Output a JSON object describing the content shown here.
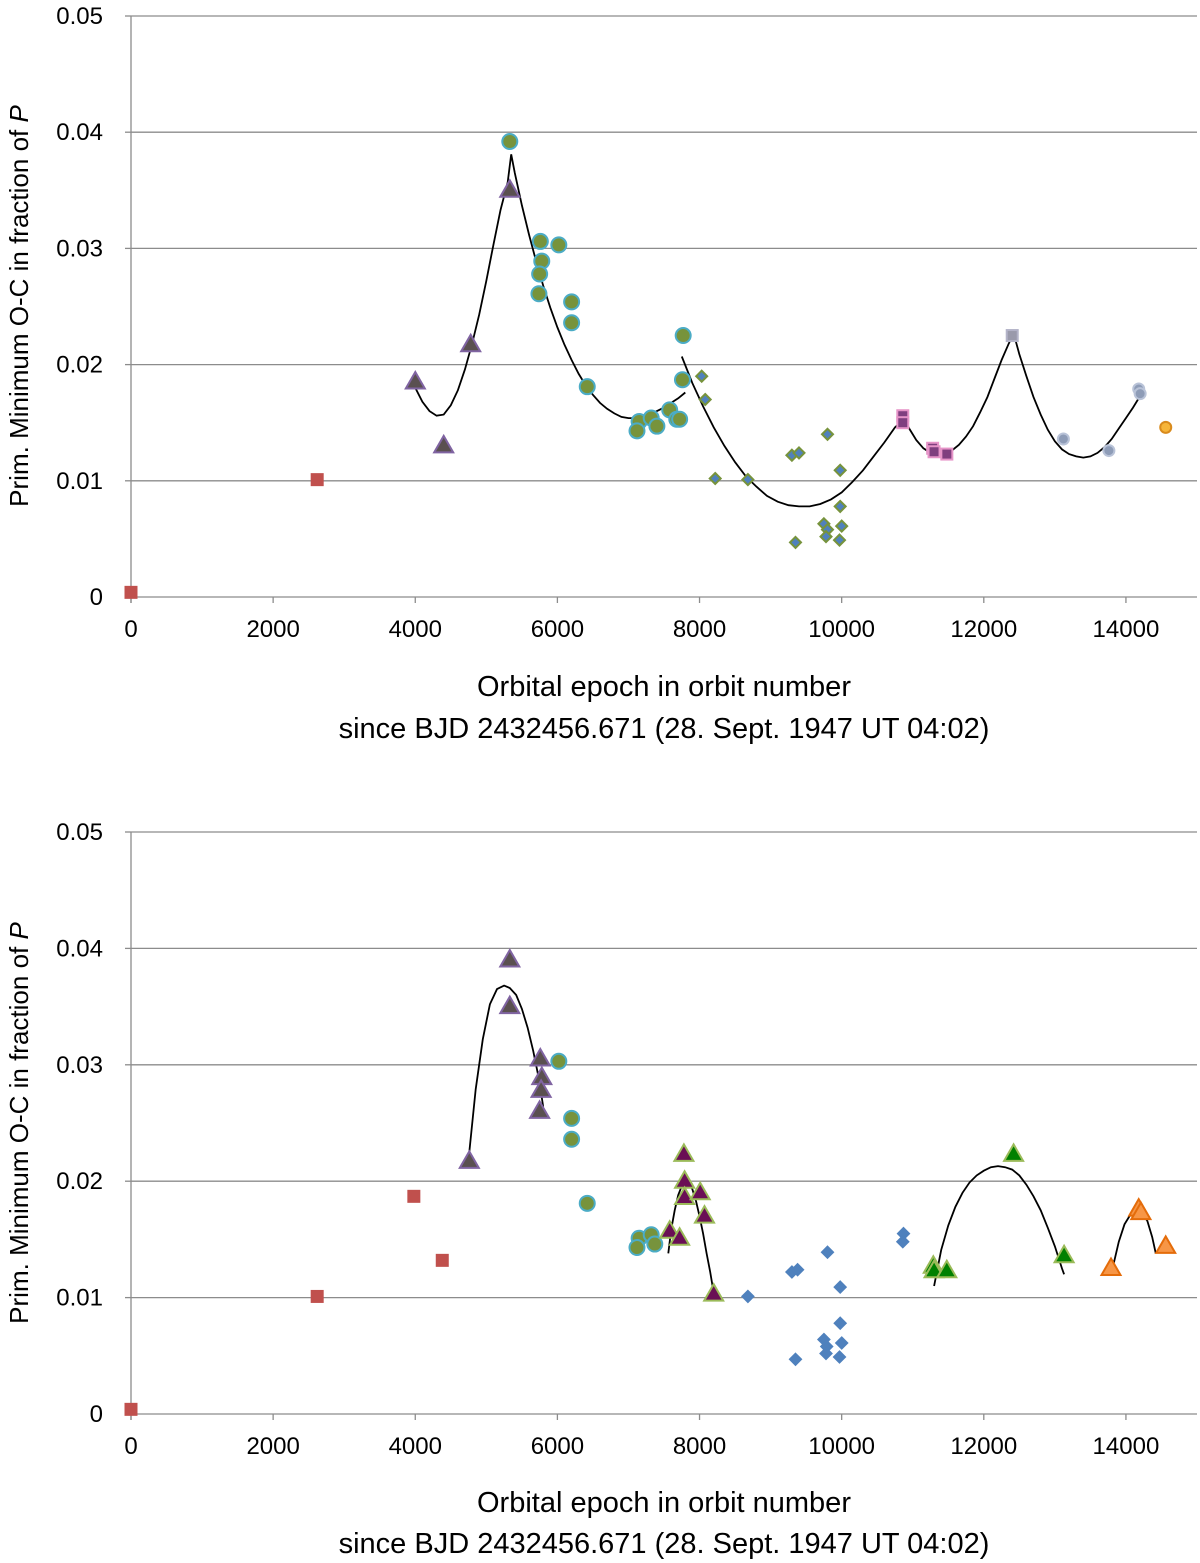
{
  "chart_data": [
    {
      "type": "scatter",
      "xlim": [
        0,
        15000
      ],
      "ylim": [
        0,
        0.05
      ],
      "xticks": [
        "0",
        "2000",
        "4000",
        "6000",
        "8000",
        "10000",
        "12000",
        "14000"
      ],
      "yticks": [
        "0",
        "0.01",
        "0.02",
        "0.03",
        "0.04",
        "0.05"
      ],
      "xlabel_line1": "Orbital epoch in orbit number",
      "xlabel_line2": "since BJD 2432456.671 (28. Sept. 1947 UT 04:02)",
      "ylabel_main": "Prim. Minimum O-C in fraction of ",
      "ylabel_symbol": "P",
      "grid": "horizontal",
      "series": [
        {
          "name": "red squares",
          "marker": "square",
          "color": "#c0504d",
          "edge": "#c0504d",
          "points": [
            [
              0,
              0.0004
            ],
            [
              2620,
              0.0101
            ]
          ]
        },
        {
          "name": "dark triangles",
          "marker": "triangle",
          "color": "#5a5050",
          "edge": "#8064a2",
          "points": [
            [
              4000,
              0.0185
            ],
            [
              4400,
              0.013
            ],
            [
              4780,
              0.0217
            ],
            [
              5330,
              0.035
            ]
          ]
        },
        {
          "name": "green circles",
          "marker": "circle",
          "color": "#77933c",
          "edge": "#4bacc6",
          "points": [
            [
              5330,
              0.0392
            ],
            [
              5760,
              0.0306
            ],
            [
              6020,
              0.0303
            ],
            [
              5780,
              0.0289
            ],
            [
              5750,
              0.0278
            ],
            [
              5740,
              0.0261
            ],
            [
              6200,
              0.0254
            ],
            [
              6200,
              0.0236
            ],
            [
              6420,
              0.0181
            ],
            [
              7150,
              0.0151
            ],
            [
              7320,
              0.0154
            ],
            [
              7400,
              0.0147
            ],
            [
              7120,
              0.0143
            ],
            [
              7580,
              0.0161
            ],
            [
              7680,
              0.0153
            ],
            [
              7720,
              0.0153
            ],
            [
              7770,
              0.0225
            ],
            [
              7760,
              0.0187
            ]
          ]
        },
        {
          "name": "small diamonds",
          "marker": "diamond",
          "color": "#4f81bd",
          "edge": "#77933c",
          "points": [
            [
              8030,
              0.019
            ],
            [
              8080,
              0.017
            ],
            [
              8220,
              0.0102
            ],
            [
              8680,
              0.0101
            ],
            [
              9300,
              0.0122
            ],
            [
              9400,
              0.0124
            ],
            [
              9350,
              0.0047
            ],
            [
              9800,
              0.014
            ],
            [
              9750,
              0.0063
            ],
            [
              9800,
              0.0058
            ],
            [
              9780,
              0.0052
            ],
            [
              9980,
              0.0109
            ],
            [
              9980,
              0.0078
            ],
            [
              10000,
              0.0061
            ],
            [
              9970,
              0.0049
            ]
          ]
        },
        {
          "name": "pink squares",
          "marker": "square",
          "color": "#7f3f7f",
          "edge": "#e694c8",
          "points": [
            [
              10860,
              0.0156
            ],
            [
              10860,
              0.015
            ],
            [
              11280,
              0.0128
            ],
            [
              11300,
              0.0125
            ],
            [
              11480,
              0.0123
            ]
          ]
        },
        {
          "name": "grey square",
          "marker": "square",
          "color": "#9a9aab",
          "edge": "#b3b3c8",
          "points": [
            [
              12400,
              0.0225
            ]
          ]
        },
        {
          "name": "grey circles",
          "marker": "circle-small",
          "color": "#8e9cb7",
          "edge": "#b9c3d8",
          "points": [
            [
              13120,
              0.0136
            ],
            [
              13760,
              0.0126
            ],
            [
              14180,
              0.0179
            ],
            [
              14200,
              0.0175
            ]
          ]
        },
        {
          "name": "orange circle",
          "marker": "circle-small",
          "color": "#f6b53a",
          "edge": "#d98b1d",
          "points": [
            [
              14560,
              0.0146
            ]
          ]
        }
      ],
      "fit_curves": [
        {
          "name": "fit 1",
          "x": [
            4000,
            4100,
            4200,
            4300,
            4400,
            4500,
            4600,
            4700,
            4800,
            4900,
            5000,
            5100,
            5200,
            5300,
            5350,
            5400,
            5500,
            5600,
            5700,
            5800,
            5900,
            6000,
            6100,
            6200,
            6300,
            6400,
            6500,
            6600,
            6700,
            6800,
            6900,
            7000,
            7100,
            7200,
            7300,
            7400,
            7500,
            7600,
            7700,
            7800
          ],
          "y": [
            0.018,
            0.0168,
            0.016,
            0.0156,
            0.0157,
            0.0165,
            0.0178,
            0.0196,
            0.0218,
            0.0243,
            0.0272,
            0.0303,
            0.0333,
            0.0357,
            0.0381,
            0.0365,
            0.0337,
            0.0312,
            0.0289,
            0.0268,
            0.0249,
            0.0232,
            0.0217,
            0.0204,
            0.0192,
            0.0182,
            0.0174,
            0.0167,
            0.0162,
            0.0158,
            0.0155,
            0.0154,
            0.0154,
            0.0155,
            0.0157,
            0.016,
            0.0163,
            0.0167,
            0.0171,
            0.0176
          ]
        },
        {
          "name": "fit 2",
          "x": [
            7750,
            7900,
            8050,
            8200,
            8350,
            8500,
            8650,
            8800,
            8950,
            9100,
            9250,
            9400,
            9550,
            9700,
            9850,
            10000,
            10150,
            10300,
            10450,
            10600,
            10750,
            10880
          ],
          "y": [
            0.0207,
            0.0184,
            0.0164,
            0.0146,
            0.013,
            0.0116,
            0.0104,
            0.0095,
            0.0087,
            0.0082,
            0.0079,
            0.0078,
            0.0078,
            0.008,
            0.0084,
            0.009,
            0.0099,
            0.0109,
            0.0121,
            0.0133,
            0.0146,
            0.0153
          ]
        },
        {
          "name": "fit 3",
          "x": [
            10880,
            10950,
            11050,
            11150,
            11250,
            11350,
            11450,
            11550,
            11650,
            11750,
            11850,
            11950,
            12050,
            12150,
            12250,
            12350,
            12420,
            12500,
            12600,
            12700,
            12800,
            12900,
            13000,
            13100,
            13200,
            13300,
            13400,
            13500,
            13600,
            13700,
            13800,
            13900,
            14000,
            14100,
            14200
          ],
          "y": [
            0.0153,
            0.0145,
            0.0135,
            0.0128,
            0.0124,
            0.0122,
            0.0123,
            0.0126,
            0.0131,
            0.0138,
            0.0147,
            0.0159,
            0.0172,
            0.0188,
            0.0204,
            0.0218,
            0.0227,
            0.0209,
            0.019,
            0.0172,
            0.0157,
            0.0144,
            0.0134,
            0.0127,
            0.0123,
            0.0121,
            0.012,
            0.0121,
            0.0124,
            0.0129,
            0.0136,
            0.0145,
            0.0154,
            0.0163,
            0.0173
          ]
        }
      ]
    },
    {
      "type": "scatter",
      "xlim": [
        0,
        15000
      ],
      "ylim": [
        0,
        0.05
      ],
      "xticks": [
        "0",
        "2000",
        "4000",
        "6000",
        "8000",
        "10000",
        "12000",
        "14000"
      ],
      "yticks": [
        "0",
        "0.01",
        "0.02",
        "0.03",
        "0.04",
        "0.05"
      ],
      "xlabel_line1": "Orbital epoch in orbit number",
      "xlabel_line2": "since BJD 2432456.671 (28. Sept. 1947 UT 04:02)",
      "ylabel_main": "Prim. Minimum O-C in fraction of ",
      "ylabel_symbol": "P",
      "grid": "horizontal",
      "series": [
        {
          "name": "red squares",
          "marker": "square",
          "color": "#c0504d",
          "edge": "#c0504d",
          "points": [
            [
              0,
              0.0004
            ],
            [
              2620,
              0.0101
            ],
            [
              3980,
              0.0187
            ],
            [
              4380,
              0.0132
            ]
          ]
        },
        {
          "name": "dark triangles",
          "marker": "triangle",
          "color": "#5a5050",
          "edge": "#8064a2",
          "points": [
            [
              4760,
              0.0217
            ],
            [
              5330,
              0.039
            ],
            [
              5330,
              0.035
            ],
            [
              5760,
              0.0305
            ],
            [
              5780,
              0.0289
            ],
            [
              5770,
              0.0278
            ],
            [
              5750,
              0.026
            ]
          ]
        },
        {
          "name": "green circles",
          "marker": "circle",
          "color": "#77933c",
          "edge": "#4bacc6",
          "points": [
            [
              6020,
              0.0303
            ],
            [
              6200,
              0.0254
            ],
            [
              6200,
              0.0236
            ],
            [
              6420,
              0.0181
            ],
            [
              7150,
              0.0151
            ],
            [
              7320,
              0.0154
            ],
            [
              7370,
              0.0146
            ],
            [
              7120,
              0.0143
            ]
          ]
        },
        {
          "name": "purple triangles",
          "marker": "triangle",
          "color": "#6a0f55",
          "edge": "#9bbb59",
          "points": [
            [
              7580,
              0.0157
            ],
            [
              7720,
              0.0151
            ],
            [
              7780,
              0.0223
            ],
            [
              7790,
              0.02
            ],
            [
              7790,
              0.0186
            ],
            [
              8010,
              0.019
            ],
            [
              8070,
              0.017
            ],
            [
              8200,
              0.0103
            ]
          ]
        },
        {
          "name": "blue diamonds",
          "marker": "diamond",
          "color": "#4f81bd",
          "edge": "#4f81bd",
          "points": [
            [
              8680,
              0.0101
            ],
            [
              9300,
              0.0122
            ],
            [
              9380,
              0.0124
            ],
            [
              9350,
              0.0047
            ],
            [
              9800,
              0.0139
            ],
            [
              9750,
              0.0064
            ],
            [
              9790,
              0.0058
            ],
            [
              9780,
              0.0052
            ],
            [
              9980,
              0.0109
            ],
            [
              9980,
              0.0078
            ],
            [
              10000,
              0.0061
            ],
            [
              9970,
              0.0049
            ],
            [
              10870,
              0.0155
            ],
            [
              10860,
              0.0148
            ]
          ]
        },
        {
          "name": "green triangles",
          "marker": "triangle",
          "color": "#008000",
          "edge": "#9bbb59",
          "points": [
            [
              11290,
              0.0127
            ],
            [
              11300,
              0.0123
            ],
            [
              11480,
              0.0123
            ],
            [
              12420,
              0.0223
            ],
            [
              13130,
              0.0136
            ]
          ]
        },
        {
          "name": "orange triangles",
          "marker": "triangle",
          "color": "#f79646",
          "edge": "#e46c0a",
          "points": [
            [
              13790,
              0.0125
            ],
            [
              14180,
              0.0176
            ],
            [
              14210,
              0.0173
            ],
            [
              14560,
              0.0144
            ]
          ]
        }
      ],
      "fit_curves": [
        {
          "name": "fit 1",
          "x": [
            4760,
            4850,
            4950,
            5050,
            5150,
            5250,
            5330,
            5420,
            5500,
            5580,
            5660,
            5740,
            5800
          ],
          "y": [
            0.0225,
            0.0279,
            0.0322,
            0.0352,
            0.0365,
            0.0368,
            0.0366,
            0.036,
            0.0348,
            0.0332,
            0.0312,
            0.0288,
            0.0264
          ]
        },
        {
          "name": "fit 2",
          "x": [
            7560,
            7600,
            7650,
            7700,
            7750,
            7800,
            7850,
            7900,
            7950,
            8000,
            8050,
            8100,
            8150,
            8200
          ],
          "y": [
            0.0138,
            0.0158,
            0.0175,
            0.0188,
            0.0196,
            0.02,
            0.0199,
            0.0193,
            0.0183,
            0.017,
            0.0155,
            0.0138,
            0.0122,
            0.0104
          ]
        },
        {
          "name": "fit 3",
          "x": [
            11300,
            11400,
            11500,
            11600,
            11700,
            11800,
            11900,
            12000,
            12100,
            12200,
            12300,
            12400,
            12500,
            12600,
            12700,
            12800,
            12900,
            13000,
            13100,
            13130
          ],
          "y": [
            0.011,
            0.0141,
            0.0162,
            0.0178,
            0.019,
            0.0199,
            0.0205,
            0.0209,
            0.0212,
            0.0213,
            0.0212,
            0.021,
            0.0205,
            0.0197,
            0.0187,
            0.0175,
            0.016,
            0.0144,
            0.0125,
            0.012
          ]
        },
        {
          "name": "fit 4",
          "x": [
            13830,
            13900,
            13980,
            14060,
            14140,
            14220,
            14300,
            14370,
            14420
          ],
          "y": [
            0.013,
            0.0148,
            0.0163,
            0.0171,
            0.0174,
            0.0173,
            0.0166,
            0.0152,
            0.0138
          ]
        }
      ]
    }
  ]
}
